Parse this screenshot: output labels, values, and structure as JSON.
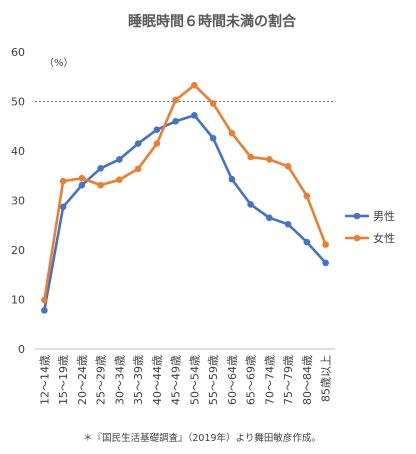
{
  "chart_data": {
    "type": "line",
    "title": "睡眠時間６時間未満の割合",
    "unit_label": "（%）",
    "categories": [
      "12～14歳",
      "15～19歳",
      "20～24歳",
      "25～29歳",
      "30～34歳",
      "35～39歳",
      "40～44歳",
      "45～49歳",
      "50～54歳",
      "55～59歳",
      "60～64歳",
      "65～69歳",
      "70～74歳",
      "75～79歳",
      "80～84歳",
      "85歳以上"
    ],
    "series": [
      {
        "name": "男性",
        "color": "#4472C4",
        "values": [
          7.8,
          28.7,
          33.1,
          36.5,
          38.3,
          41.5,
          44.3,
          46.0,
          47.2,
          42.6,
          34.3,
          29.2,
          26.5,
          25.2,
          21.6,
          17.4
        ]
      },
      {
        "name": "女性",
        "color": "#ED7D31",
        "values": [
          9.9,
          33.9,
          34.5,
          33.1,
          34.2,
          36.4,
          41.5,
          50.3,
          53.3,
          49.6,
          43.6,
          38.8,
          38.3,
          36.9,
          30.9,
          21.1
        ]
      }
    ],
    "ylim": [
      0,
      60
    ],
    "yticks": [
      0,
      10,
      20,
      30,
      40,
      50,
      60
    ],
    "reference_line": 50,
    "grid": false,
    "legend_position": "right",
    "footnote": "＊『国民生活基礎調査』（2019年）より舞田敏彦作成。"
  }
}
